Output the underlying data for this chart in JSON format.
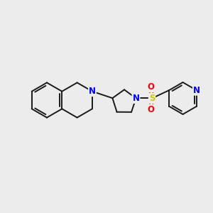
{
  "background_color": "#ececec",
  "bond_color": "#1a1a1a",
  "bond_width": 1.4,
  "atom_colors": {
    "N": "#0000ff",
    "S": "#cccc00",
    "O": "#ff0000",
    "C": "#1a1a1a"
  },
  "font_size": 8.5,
  "figsize": [
    3.0,
    3.0
  ],
  "dpi": 100
}
